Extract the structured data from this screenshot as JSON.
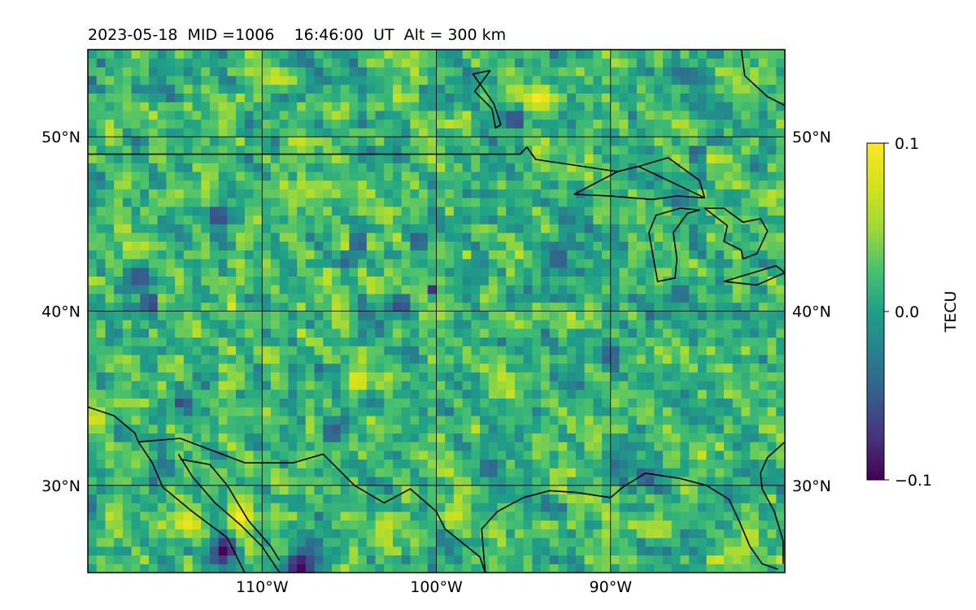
{
  "chart_data": {
    "type": "heatmap",
    "title": "2023-05-18  MID =1006    16:46:00  UT  Alt = 300 km",
    "lon_range": [
      -120,
      -80
    ],
    "lat_range": [
      25,
      55
    ],
    "x_ticks": [
      {
        "value": -110,
        "label": "110°W"
      },
      {
        "value": -100,
        "label": "100°W"
      },
      {
        "value": -90,
        "label": "90°W"
      }
    ],
    "y_ticks": [
      {
        "value": 30,
        "label": "30°N"
      },
      {
        "value": 40,
        "label": "40°N"
      },
      {
        "value": 50,
        "label": "50°N"
      }
    ],
    "grid": true,
    "colormap": "viridis",
    "colorbar": {
      "label": "TECU",
      "range": [
        -0.1,
        0.1
      ],
      "ticks": [
        {
          "value": 0.1,
          "label": "0.1"
        },
        {
          "value": 0.0,
          "label": "0.0"
        },
        {
          "value": -0.1,
          "label": "−0.1"
        }
      ]
    },
    "grid_spacing_deg": 0.5,
    "background_value": 0.015,
    "noise_amplitude": 0.03,
    "features": [
      {
        "lon": -94.2,
        "lat": 52.2,
        "value": 0.1,
        "radius": 0.8
      },
      {
        "lon": -111.2,
        "lat": 28.2,
        "value": 0.1,
        "radius": 0.9
      },
      {
        "lon": -114.3,
        "lat": 27.9,
        "value": 0.09,
        "radius": 0.9
      },
      {
        "lon": -112.2,
        "lat": 26.2,
        "value": -0.1,
        "radius": 0.8
      },
      {
        "lon": -107.8,
        "lat": 25.4,
        "value": -0.1,
        "radius": 0.9
      },
      {
        "lon": -104.5,
        "lat": 36.0,
        "value": 0.09,
        "radius": 0.7
      },
      {
        "lon": -103.5,
        "lat": 41.5,
        "value": 0.08,
        "radius": 0.5
      },
      {
        "lon": -105.3,
        "lat": 43.8,
        "value": 0.08,
        "radius": 0.5
      },
      {
        "lon": -106.2,
        "lat": 42.0,
        "value": 0.08,
        "radius": 0.5
      },
      {
        "lon": -99.0,
        "lat": 28.2,
        "value": 0.08,
        "radius": 0.6
      },
      {
        "lon": -103.0,
        "lat": 27.5,
        "value": 0.08,
        "radius": 0.6
      },
      {
        "lon": -119.5,
        "lat": 33.9,
        "value": 0.08,
        "radius": 0.8
      },
      {
        "lon": -111.8,
        "lat": 40.3,
        "value": 0.08,
        "radius": 0.4
      },
      {
        "lon": -112.0,
        "lat": 35.8,
        "value": 0.07,
        "radius": 0.5
      },
      {
        "lon": -84.0,
        "lat": 25.7,
        "value": 0.1,
        "radius": 0.5
      },
      {
        "lon": -82.0,
        "lat": 27.0,
        "value": 0.09,
        "radius": 0.4
      },
      {
        "lon": -80.4,
        "lat": 25.8,
        "value": 0.08,
        "radius": 0.4
      },
      {
        "lon": -90.4,
        "lat": 27.0,
        "value": 0.08,
        "radius": 0.4
      },
      {
        "lon": -86.0,
        "lat": 50.8,
        "value": 0.07,
        "radius": 0.5
      },
      {
        "lon": -116.0,
        "lat": 48.8,
        "value": 0.05,
        "radius": 0.5
      },
      {
        "lon": -85.0,
        "lat": 49.1,
        "value": -0.1,
        "radius": 0.4
      },
      {
        "lon": -114.5,
        "lat": 34.6,
        "value": -0.1,
        "radius": 0.4
      },
      {
        "lon": -116.4,
        "lat": 40.5,
        "value": -0.1,
        "radius": 0.4
      },
      {
        "lon": -104.5,
        "lat": 44.0,
        "value": -0.09,
        "radius": 0.5
      },
      {
        "lon": -102.0,
        "lat": 40.5,
        "value": -0.09,
        "radius": 0.4
      },
      {
        "lon": -100.3,
        "lat": 41.1,
        "value": -0.1,
        "radius": 0.3
      },
      {
        "lon": -105.0,
        "lat": 43.0,
        "value": -0.08,
        "radius": 0.4
      },
      {
        "lon": -95.5,
        "lat": 51.0,
        "value": -0.08,
        "radius": 0.6
      },
      {
        "lon": -112.5,
        "lat": 45.5,
        "value": -0.07,
        "radius": 0.6
      },
      {
        "lon": -101.0,
        "lat": 44.0,
        "value": -0.06,
        "radius": 0.6
      },
      {
        "lon": -90.0,
        "lat": 37.5,
        "value": -0.06,
        "radius": 0.7
      },
      {
        "lon": -106.0,
        "lat": 33.0,
        "value": -0.06,
        "radius": 0.7
      },
      {
        "lon": -93.0,
        "lat": 43.0,
        "value": -0.06,
        "radius": 0.7
      },
      {
        "lon": -117.0,
        "lat": 42.0,
        "value": -0.06,
        "radius": 0.8
      },
      {
        "lon": -86.0,
        "lat": 41.0,
        "value": -0.05,
        "radius": 0.7
      },
      {
        "lon": -97.0,
        "lat": 31.0,
        "value": -0.06,
        "radius": 0.6
      },
      {
        "lon": -88.0,
        "lat": 30.5,
        "value": -0.06,
        "radius": 0.5
      }
    ],
    "coastlines": [
      {
        "name": "us-canada-border",
        "points": [
          [
            -120,
            49
          ],
          [
            -95.2,
            49
          ],
          [
            -94.8,
            49.4
          ],
          [
            -94.3,
            48.7
          ],
          [
            -89.6,
            48.0
          ],
          [
            -88.4,
            48.3
          ],
          [
            -84.6,
            46.5
          ]
        ]
      },
      {
        "name": "lake-superior",
        "points": [
          [
            -92.1,
            46.7
          ],
          [
            -89.6,
            48.0
          ],
          [
            -88.4,
            48.3
          ],
          [
            -86.7,
            48.8
          ],
          [
            -84.9,
            47.5
          ],
          [
            -84.6,
            46.5
          ],
          [
            -86.2,
            46.6
          ],
          [
            -87.6,
            46.4
          ],
          [
            -90.0,
            46.6
          ],
          [
            -92.1,
            46.7
          ]
        ]
      },
      {
        "name": "lake-michigan",
        "points": [
          [
            -86.0,
            45.9
          ],
          [
            -87.4,
            45.5
          ],
          [
            -87.8,
            44.5
          ],
          [
            -87.5,
            42.8
          ],
          [
            -87.3,
            41.7
          ],
          [
            -86.3,
            41.9
          ],
          [
            -86.2,
            43.0
          ],
          [
            -86.4,
            44.5
          ],
          [
            -85.6,
            45.6
          ],
          [
            -84.9,
            45.8
          ],
          [
            -86.0,
            45.9
          ]
        ]
      },
      {
        "name": "lake-huron",
        "points": [
          [
            -84.6,
            45.9
          ],
          [
            -83.5,
            45.9
          ],
          [
            -82.4,
            45.1
          ],
          [
            -81.4,
            45.3
          ],
          [
            -81.0,
            44.6
          ],
          [
            -81.6,
            43.3
          ],
          [
            -82.4,
            43.0
          ],
          [
            -82.5,
            43.5
          ],
          [
            -83.5,
            44.0
          ],
          [
            -83.3,
            44.9
          ],
          [
            -84.6,
            45.9
          ]
        ]
      },
      {
        "name": "lake-erie",
        "points": [
          [
            -83.5,
            41.7
          ],
          [
            -81.6,
            41.5
          ],
          [
            -80.0,
            42.2
          ],
          [
            -80.5,
            42.6
          ],
          [
            -82.5,
            42.0
          ],
          [
            -83.5,
            41.7
          ]
        ]
      },
      {
        "name": "lake-winnipeg",
        "points": [
          [
            -96.9,
            53.8
          ],
          [
            -97.8,
            52.6
          ],
          [
            -96.8,
            51.6
          ],
          [
            -96.6,
            50.5
          ],
          [
            -96.3,
            50.7
          ],
          [
            -96.7,
            51.9
          ],
          [
            -97.9,
            53.6
          ],
          [
            -96.9,
            53.8
          ]
        ]
      },
      {
        "name": "hudson-bay",
        "points": [
          [
            -82.5,
            55.0
          ],
          [
            -82.3,
            53.5
          ],
          [
            -81.0,
            52.3
          ],
          [
            -80.0,
            51.8
          ]
        ]
      },
      {
        "name": "us-mexico-border",
        "points": [
          [
            -117.1,
            32.5
          ],
          [
            -114.7,
            32.7
          ],
          [
            -111.0,
            31.3
          ],
          [
            -108.2,
            31.3
          ],
          [
            -106.5,
            31.8
          ],
          [
            -104.7,
            30.0
          ],
          [
            -103.0,
            29.0
          ],
          [
            -101.5,
            29.8
          ],
          [
            -100.0,
            28.5
          ],
          [
            -99.5,
            27.5
          ],
          [
            -97.5,
            25.9
          ],
          [
            -97.2,
            25.0
          ]
        ]
      },
      {
        "name": "gulf-coast",
        "points": [
          [
            -97.2,
            25.0
          ],
          [
            -97.4,
            27.5
          ],
          [
            -96.5,
            28.5
          ],
          [
            -95.0,
            29.3
          ],
          [
            -93.5,
            29.7
          ],
          [
            -92.0,
            29.6
          ],
          [
            -90.0,
            29.3
          ],
          [
            -89.3,
            29.9
          ],
          [
            -88.0,
            30.7
          ],
          [
            -86.0,
            30.4
          ],
          [
            -84.5,
            30.0
          ],
          [
            -83.2,
            29.2
          ],
          [
            -82.6,
            27.9
          ],
          [
            -82.0,
            26.5
          ],
          [
            -81.3,
            25.5
          ],
          [
            -80.4,
            25.2
          ]
        ]
      },
      {
        "name": "florida-atlantic",
        "points": [
          [
            -80.1,
            25.5
          ],
          [
            -80.1,
            26.8
          ],
          [
            -80.6,
            28.5
          ],
          [
            -81.3,
            29.8
          ],
          [
            -81.4,
            30.7
          ],
          [
            -81.0,
            31.6
          ],
          [
            -80.0,
            32.5
          ]
        ]
      },
      {
        "name": "baja-peninsula",
        "points": [
          [
            -117.1,
            32.5
          ],
          [
            -116.3,
            31.3
          ],
          [
            -115.7,
            29.9
          ],
          [
            -114.0,
            28.5
          ],
          [
            -112.0,
            27.0
          ],
          [
            -111.0,
            25.0
          ]
        ]
      },
      {
        "name": "gulf-of-california-east",
        "points": [
          [
            -114.8,
            31.8
          ],
          [
            -114.0,
            30.5
          ],
          [
            -112.7,
            29.0
          ],
          [
            -111.2,
            27.7
          ],
          [
            -110.0,
            26.5
          ],
          [
            -109.0,
            25.0
          ]
        ]
      },
      {
        "name": "mexico-pacific-coast",
        "points": [
          [
            -114.7,
            31.5
          ],
          [
            -113.0,
            31.2
          ],
          [
            -112.0,
            30.0
          ],
          [
            -110.8,
            28.0
          ],
          [
            -109.5,
            26.5
          ],
          [
            -109.0,
            25.7
          ]
        ]
      },
      {
        "name": "california-coast",
        "points": [
          [
            -120.0,
            34.5
          ],
          [
            -118.5,
            34.0
          ],
          [
            -117.3,
            33.0
          ],
          [
            -117.1,
            32.5
          ]
        ]
      }
    ]
  }
}
